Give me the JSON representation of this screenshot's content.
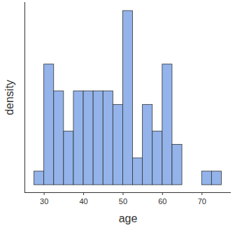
{
  "chart_data": {
    "type": "histogram",
    "x_label": "age",
    "y_label": "density",
    "bins": [
      27.5,
      30,
      32.5,
      35,
      37.5,
      40,
      42.5,
      45,
      47.5,
      50,
      52.5,
      55,
      57.5,
      60,
      62.5,
      65,
      67.5,
      70,
      72.5,
      75
    ],
    "values": [
      0.0043,
      0.0383,
      0.0298,
      0.017,
      0.0298,
      0.0298,
      0.0298,
      0.0298,
      0.0255,
      0.0553,
      0.0085,
      0.0255,
      0.017,
      0.0383,
      0.0128,
      0,
      0,
      0.0043,
      0.0043
    ],
    "color": "#93b3ea",
    "xlim": [
      25.1,
      77.4
    ],
    "xticks": [
      30,
      40,
      50,
      60,
      70
    ],
    "ylim": [
      -0.0024,
      0.058
    ],
    "yticks": [],
    "tick_labels": "x",
    "grid": false
  }
}
